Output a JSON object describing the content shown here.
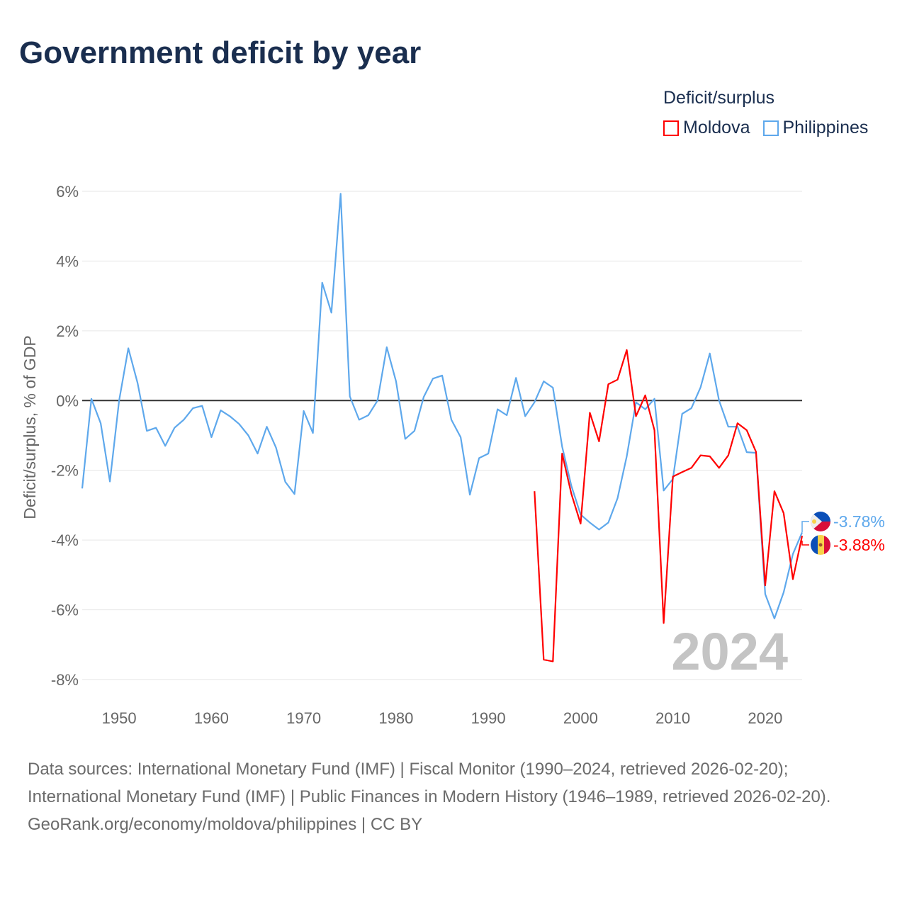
{
  "title": "Government deficit by year",
  "legend": {
    "title": "Deficit/surplus",
    "items": [
      {
        "name": "Moldova",
        "color": "#ff0000"
      },
      {
        "name": "Philippines",
        "color": "#5ea8ec"
      }
    ]
  },
  "watermark_year": "2024",
  "end_labels": {
    "philippines": "-3.78%",
    "moldova": "-3.88%"
  },
  "footer": {
    "sources": "Data sources: International Monetary Fund (IMF) | Fiscal Monitor (1990–2024, retrieved 2026-02-20); International Monetary Fund (IMF) | Public Finances in Modern History (1946–1989, retrieved 2026-02-20).",
    "credit": "GeoRank.org/economy/moldova/philippines | CC BY"
  },
  "chart_data": {
    "type": "line",
    "title": "Government deficit by year",
    "xlabel": "",
    "ylabel": "Deficit/surplus, % of GDP",
    "xlim": [
      1946,
      2024
    ],
    "ylim": [
      -8,
      6
    ],
    "xticks": [
      1950,
      1960,
      1970,
      1980,
      1990,
      2000,
      2010,
      2020
    ],
    "yticks": [
      6,
      4,
      2,
      0,
      -2,
      -4,
      -6,
      -8
    ],
    "ytick_labels": [
      "6%",
      "4%",
      "2%",
      "0%",
      "-2%",
      "-4%",
      "-6%",
      "-8%"
    ],
    "grid": true,
    "legend_position": "top-right",
    "series": [
      {
        "name": "Philippines",
        "color": "#5ea8ec",
        "start_year": 1946,
        "values": [
          -2.52,
          0.05,
          -0.65,
          -2.32,
          0,
          1.5,
          0.5,
          -0.87,
          -0.78,
          -1.3,
          -0.78,
          -0.55,
          -0.22,
          -0.15,
          -1.05,
          -0.28,
          -0.45,
          -0.67,
          -1.0,
          -1.52,
          -0.75,
          -1.35,
          -2.33,
          -2.68,
          -0.3,
          -0.93,
          3.38,
          2.52,
          5.93,
          0.12,
          -0.55,
          -0.42,
          0,
          1.53,
          0.55,
          -1.1,
          -0.87,
          0.1,
          0.63,
          0.72,
          -0.55,
          -1.05,
          -2.7,
          -1.65,
          -1.52,
          -0.25,
          -0.42,
          0.65,
          -0.45,
          -0.05,
          0.55,
          0.37,
          -1.32,
          -2.45,
          -3.27,
          -3.5,
          -3.7,
          -3.5,
          -2.8,
          -1.6,
          -0.05,
          -0.25,
          0.05,
          -2.58,
          -2.25,
          -0.38,
          -0.22,
          0.38,
          1.35,
          0,
          -0.75,
          -0.75,
          -1.48,
          -1.5,
          -5.55,
          -6.25,
          -5.5,
          -4.4,
          -3.78
        ]
      },
      {
        "name": "Moldova",
        "color": "#ff0000",
        "start_year": 1995,
        "values": [
          -2.6,
          -7.43,
          -7.48,
          -1.52,
          -2.68,
          -3.53,
          -0.35,
          -1.17,
          0.47,
          0.6,
          1.45,
          -0.45,
          0.15,
          -0.85,
          -6.38,
          -2.18,
          -2.05,
          -1.93,
          -1.57,
          -1.6,
          -1.93,
          -1.57,
          -0.65,
          -0.85,
          -1.47,
          -5.3,
          -2.6,
          -3.23,
          -5.12,
          -3.88
        ]
      }
    ]
  }
}
